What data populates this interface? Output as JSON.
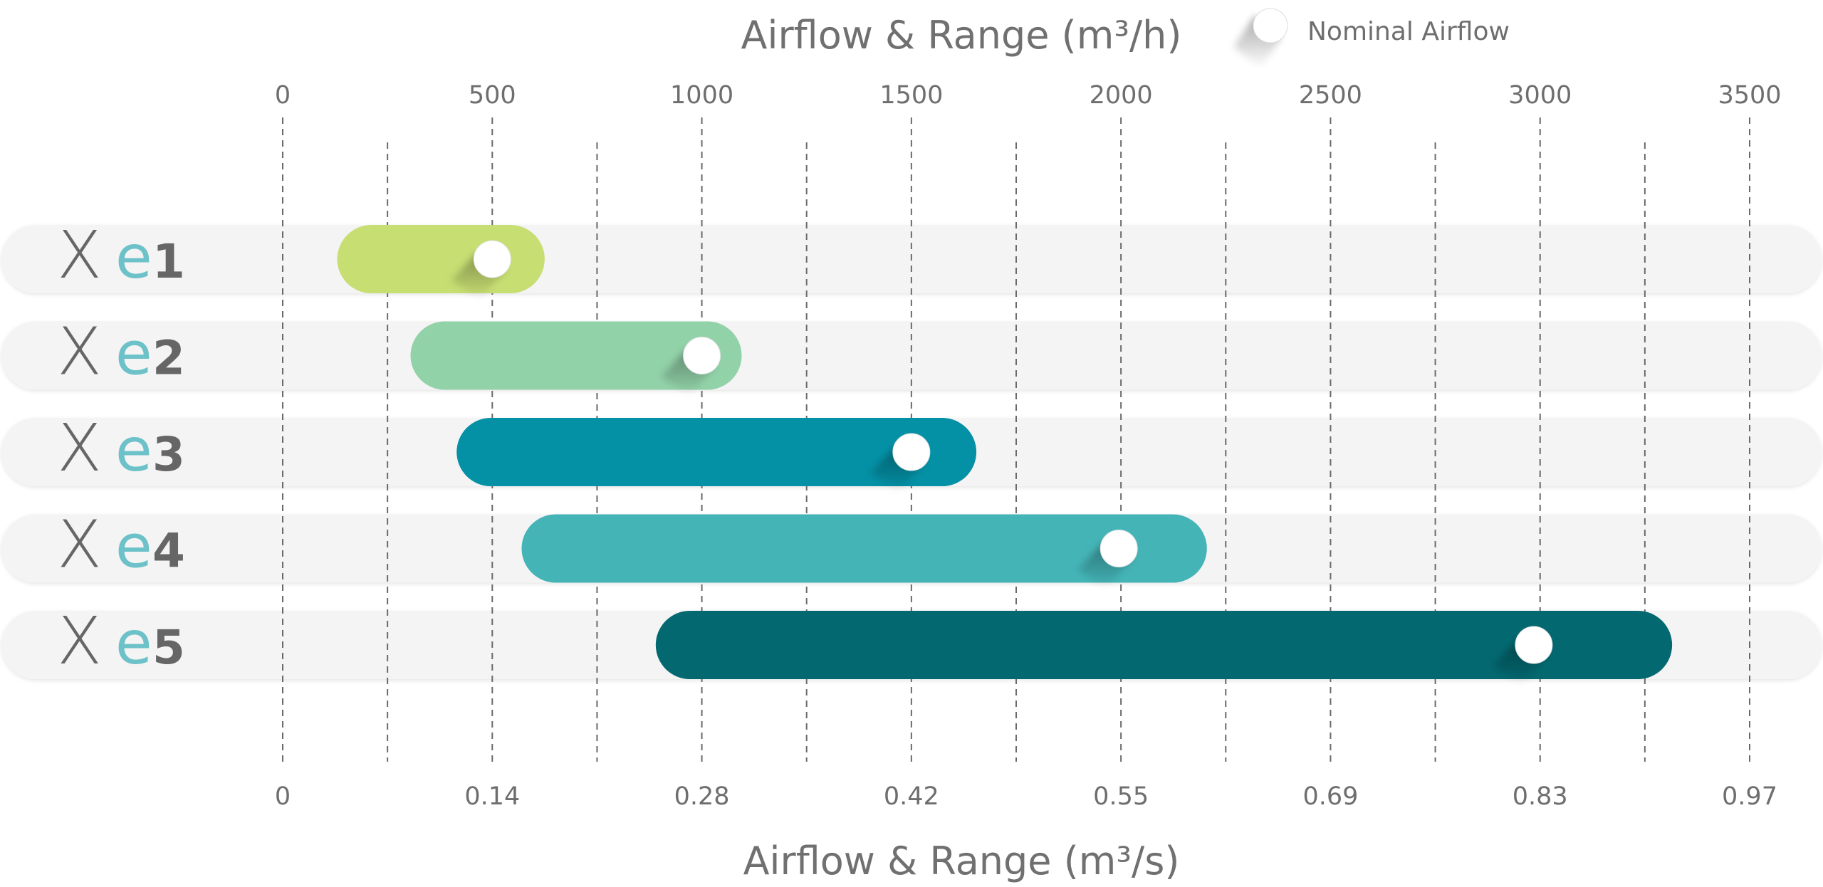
{
  "chart_data": {
    "type": "bar",
    "orientation": "horizontal",
    "subtype": "floating-range",
    "title": "Airflow & Range (m³/h)",
    "xlabel": "Airflow & Range (m³/s)",
    "legend": {
      "entries": [
        "Nominal Airflow"
      ],
      "position": "top-right"
    },
    "top_axis": {
      "unit": "m³/h",
      "range": [
        0,
        3500
      ],
      "ticks": [
        0,
        500,
        1000,
        1500,
        2000,
        2500,
        3000,
        3500
      ],
      "tick_labels": [
        "0",
        "500",
        "1000",
        "1500",
        "2000",
        "2500",
        "3000",
        "3500"
      ]
    },
    "bottom_axis": {
      "unit": "m³/s",
      "ticks": [
        0,
        500,
        1000,
        1500,
        2000,
        2500,
        3000,
        3500
      ],
      "tick_labels": [
        "0",
        "0.14",
        "0.28",
        "0.42",
        "0.55",
        "0.69",
        "0.83",
        "0.97"
      ]
    },
    "grid": true,
    "gridlines": [
      0,
      250,
      500,
      750,
      1000,
      1250,
      1500,
      1750,
      2000,
      2250,
      2500,
      2750,
      3000,
      3250,
      3500
    ],
    "categories": [
      "Xe1",
      "Xe2",
      "Xe3",
      "Xe4",
      "Xe5"
    ],
    "series": [
      {
        "name": "Xe1",
        "label_parts": [
          "X",
          "e",
          "1"
        ],
        "range": [
          130,
          625
        ],
        "nominal": 500,
        "color": "#c7de73"
      },
      {
        "name": "Xe2",
        "label_parts": [
          "X",
          "e",
          "2"
        ],
        "range": [
          305,
          1095
        ],
        "nominal": 1000,
        "color": "#92d2a9"
      },
      {
        "name": "Xe3",
        "label_parts": [
          "X",
          "e",
          "3"
        ],
        "range": [
          415,
          1655
        ],
        "nominal": 1500,
        "color": "#0490a5"
      },
      {
        "name": "Xe4",
        "label_parts": [
          "X",
          "e",
          "4"
        ],
        "range": [
          570,
          2205
        ],
        "nominal": 1995,
        "color": "#44b4b7"
      },
      {
        "name": "Xe5",
        "label_parts": [
          "X",
          "e",
          "5"
        ],
        "range": [
          890,
          3315
        ],
        "nominal": 2985,
        "color": "#036870"
      }
    ],
    "colors": {
      "track": "#f4f4f4",
      "grid": "#6a6a6a",
      "marker": "#ffffff",
      "text": "#707070",
      "label_e": "#6cc2c8"
    }
  }
}
